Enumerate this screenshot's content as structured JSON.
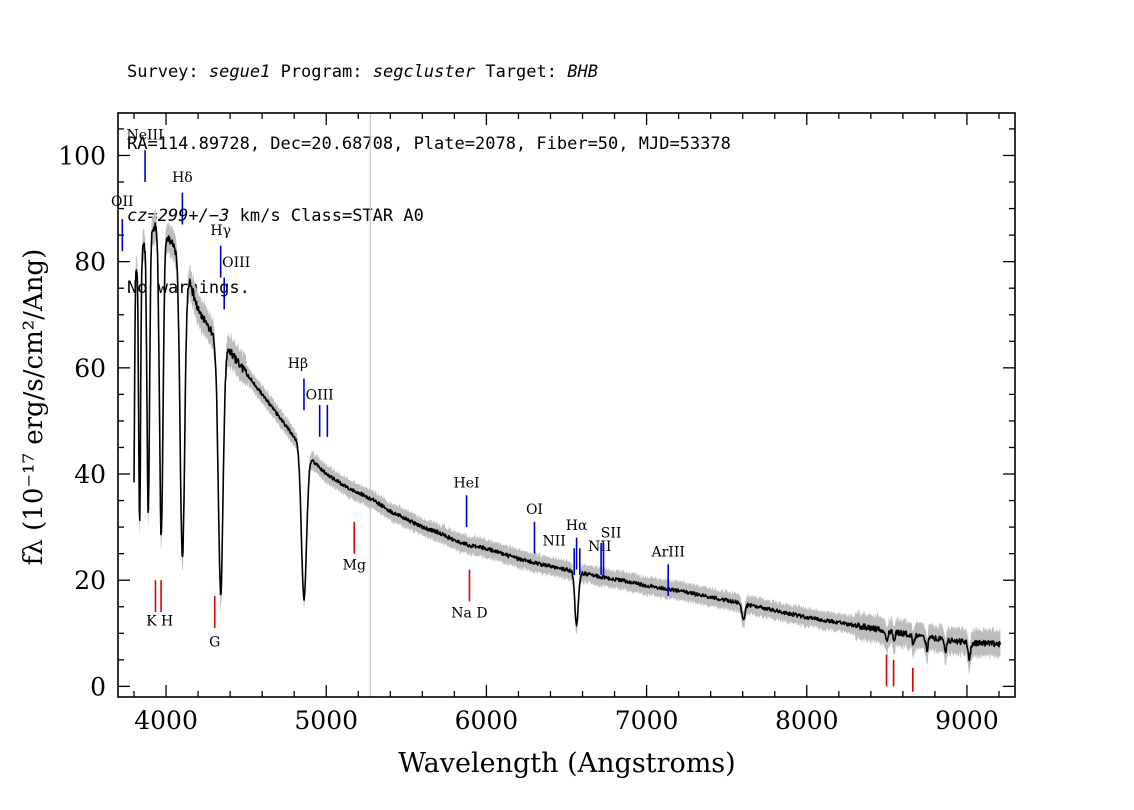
{
  "header": {
    "line1": {
      "survey_label": "Survey:",
      "survey": "segue1",
      "program_label": "Program:",
      "program": "segcluster",
      "target_label": "Target:",
      "target": "BHB"
    },
    "line2": "RA=114.89728, Dec=20.68708, Plate=2078, Fiber=50, MJD=53378",
    "line3": {
      "cz": "cz=299+/−3",
      "rest": "km/s Class=STAR A0"
    },
    "line4": "No warnings."
  },
  "chart_data": {
    "type": "line",
    "xlabel": "Wavelength (Angstroms)",
    "ylabel": "fλ (10⁻¹⁷ erg/s/cm²/Ang)",
    "xlim": [
      3700,
      9300
    ],
    "ylim": [
      -2,
      108
    ],
    "x_ticks": [
      4000,
      5000,
      6000,
      7000,
      8000,
      9000
    ],
    "y_ticks": [
      0,
      20,
      40,
      60,
      80,
      100
    ],
    "grid": false,
    "legend": "none",
    "marker_line_x": 5275,
    "colors": {
      "spectrum": "#000000",
      "error": "#bdbdbd",
      "emission": "#0000cc",
      "absorption": "#dd0000",
      "marker": "#c8c8c8"
    },
    "continuum": {
      "x": [
        3800,
        3850,
        3900,
        3950,
        4000,
        4050,
        4100,
        4150,
        4200,
        4300,
        4400,
        4500,
        4600,
        4700,
        4800,
        4900,
        5000,
        5100,
        5200,
        5300,
        5400,
        5500,
        5600,
        5700,
        5800,
        5900,
        6000,
        6100,
        6200,
        6300,
        6400,
        6500,
        6600,
        6700,
        6800,
        6900,
        7000,
        7200,
        7400,
        7600,
        7800,
        8000,
        8200,
        8400,
        8600,
        8800,
        9000,
        9200
      ],
      "y": [
        78,
        82,
        86,
        87,
        85,
        83,
        80,
        76,
        71,
        66,
        63,
        59,
        55,
        51,
        47,
        43,
        40,
        38,
        36.5,
        35,
        33,
        31.5,
        30,
        29,
        27.5,
        26.5,
        26,
        25,
        24,
        23.3,
        22.6,
        22,
        21.3,
        20.7,
        20.2,
        19.6,
        19,
        18,
        16.8,
        15.6,
        14.3,
        13,
        12,
        11,
        10,
        9,
        8.3,
        8
      ]
    },
    "absorption_features": [
      {
        "center": 3798,
        "depth": 42,
        "width": 5
      },
      {
        "center": 3835,
        "depth": 50,
        "width": 6
      },
      {
        "center": 3889,
        "depth": 53,
        "width": 8
      },
      {
        "center": 3970,
        "depth": 58,
        "width": 11
      },
      {
        "center": 4102,
        "depth": 56,
        "width": 14
      },
      {
        "center": 4341,
        "depth": 47,
        "width": 15
      },
      {
        "center": 4861,
        "depth": 28,
        "width": 16
      },
      {
        "center": 6563,
        "depth": 10,
        "width": 11
      },
      {
        "center": 7605,
        "depth": 3,
        "width": 10
      },
      {
        "center": 8500,
        "depth": 2,
        "width": 6
      },
      {
        "center": 8545,
        "depth": 2,
        "width": 6
      },
      {
        "center": 8665,
        "depth": 2,
        "width": 6
      },
      {
        "center": 8750,
        "depth": 2.5,
        "width": 6
      },
      {
        "center": 8865,
        "depth": 2.5,
        "width": 6
      },
      {
        "center": 9015,
        "depth": 3,
        "width": 8
      }
    ],
    "emission_lines": [
      {
        "label": "OII",
        "x": 3727,
        "y0": 82,
        "y1": 88,
        "label_y": 90.5,
        "label_dx": 0
      },
      {
        "label": "NeIII",
        "x": 3869,
        "y0": 95,
        "y1": 101,
        "label_y": 103,
        "label_dx": 0
      },
      {
        "label": "Hδ",
        "x": 4102,
        "y0": 87,
        "y1": 93,
        "label_y": 95,
        "label_dx": 0
      },
      {
        "label": "Hγ",
        "x": 4341,
        "y0": 77,
        "y1": 83,
        "label_y": 85,
        "label_dx": 0
      },
      {
        "label": "OIII",
        "x": 4363,
        "y0": 71,
        "y1": 77,
        "label_y": 79,
        "label_dx": 12
      },
      {
        "label": "Hβ",
        "x": 4861,
        "y0": 52,
        "y1": 58,
        "label_y": 60,
        "label_dx": -6
      },
      {
        "label": "OIII",
        "x": 4959,
        "y0": 47,
        "y1": 53,
        "label_y": 54,
        "label_dx": 0
      },
      {
        "label": "",
        "x": 5007,
        "y0": 47,
        "y1": 53,
        "label_y": 0,
        "label_dx": 0
      },
      {
        "label": "HeI",
        "x": 5876,
        "y0": 30,
        "y1": 36,
        "label_y": 37.5,
        "label_dx": 0
      },
      {
        "label": "OI",
        "x": 6300,
        "y0": 25,
        "y1": 31,
        "label_y": 32.5,
        "label_dx": 0
      },
      {
        "label": "NII",
        "x": 6548,
        "y0": 21,
        "y1": 26,
        "label_y": 26.5,
        "label_dx": -20
      },
      {
        "label": "Hα",
        "x": 6563,
        "y0": 22,
        "y1": 28,
        "label_y": 29.5,
        "label_dx": 0
      },
      {
        "label": "NII",
        "x": 6583,
        "y0": 21,
        "y1": 26,
        "label_y": 25.5,
        "label_dx": 20
      },
      {
        "label": "SII",
        "x": 6716,
        "y0": 21,
        "y1": 27,
        "label_y": 28,
        "label_dx": 10
      },
      {
        "label": "",
        "x": 6731,
        "y0": 21,
        "y1": 27,
        "label_y": 0,
        "label_dx": 0
      },
      {
        "label": "ArIII",
        "x": 7135,
        "y0": 17,
        "y1": 23,
        "label_y": 24.5,
        "label_dx": 0
      }
    ],
    "absorption_lines": [
      {
        "label": "K",
        "x": 3934,
        "y0": 14,
        "y1": 20,
        "label_y": 11.5,
        "label_dx": -4
      },
      {
        "label": "H",
        "x": 3969,
        "y0": 14,
        "y1": 20,
        "label_y": 11.5,
        "label_dx": 6
      },
      {
        "label": "G",
        "x": 4304,
        "y0": 11,
        "y1": 17,
        "label_y": 7.5,
        "label_dx": 0
      },
      {
        "label": "Mg",
        "x": 5175,
        "y0": 25,
        "y1": 31,
        "label_y": 22,
        "label_dx": 0
      },
      {
        "label": "Na D",
        "x": 5894,
        "y0": 16,
        "y1": 22,
        "label_y": 13,
        "label_dx": 0
      },
      {
        "label": "",
        "x": 8498,
        "y0": 0,
        "y1": 6,
        "label_y": -3,
        "label_dx": 0
      },
      {
        "label": "",
        "x": 8542,
        "y0": 0,
        "y1": 5,
        "label_y": -3,
        "label_dx": 0
      },
      {
        "label": "",
        "x": 8662,
        "y0": -1,
        "y1": 3.5,
        "label_y": -3,
        "label_dx": 0
      }
    ]
  }
}
